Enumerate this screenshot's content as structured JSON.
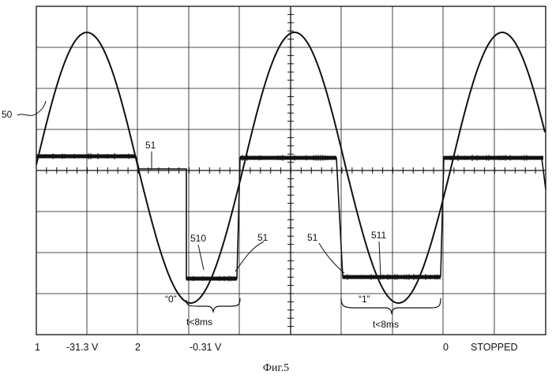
{
  "figure": {
    "caption": "Фиг.5"
  },
  "labels": {
    "sine": "50",
    "trace_a": "51",
    "trace_b": "51",
    "trace_c": "51",
    "pulse_zero_ref": "510",
    "pulse_one_ref": "511",
    "bit_zero": "“0”",
    "bit_one": "“1”",
    "duration_zero": "t<8ms",
    "duration_one": "t<8ms"
  },
  "status_bar": {
    "ch1": "1",
    "ch1_value": "-31.3 V",
    "ch2": "2",
    "ch2_value": "-0.31 V",
    "trigger": "0",
    "state": "STOPPED"
  }
}
